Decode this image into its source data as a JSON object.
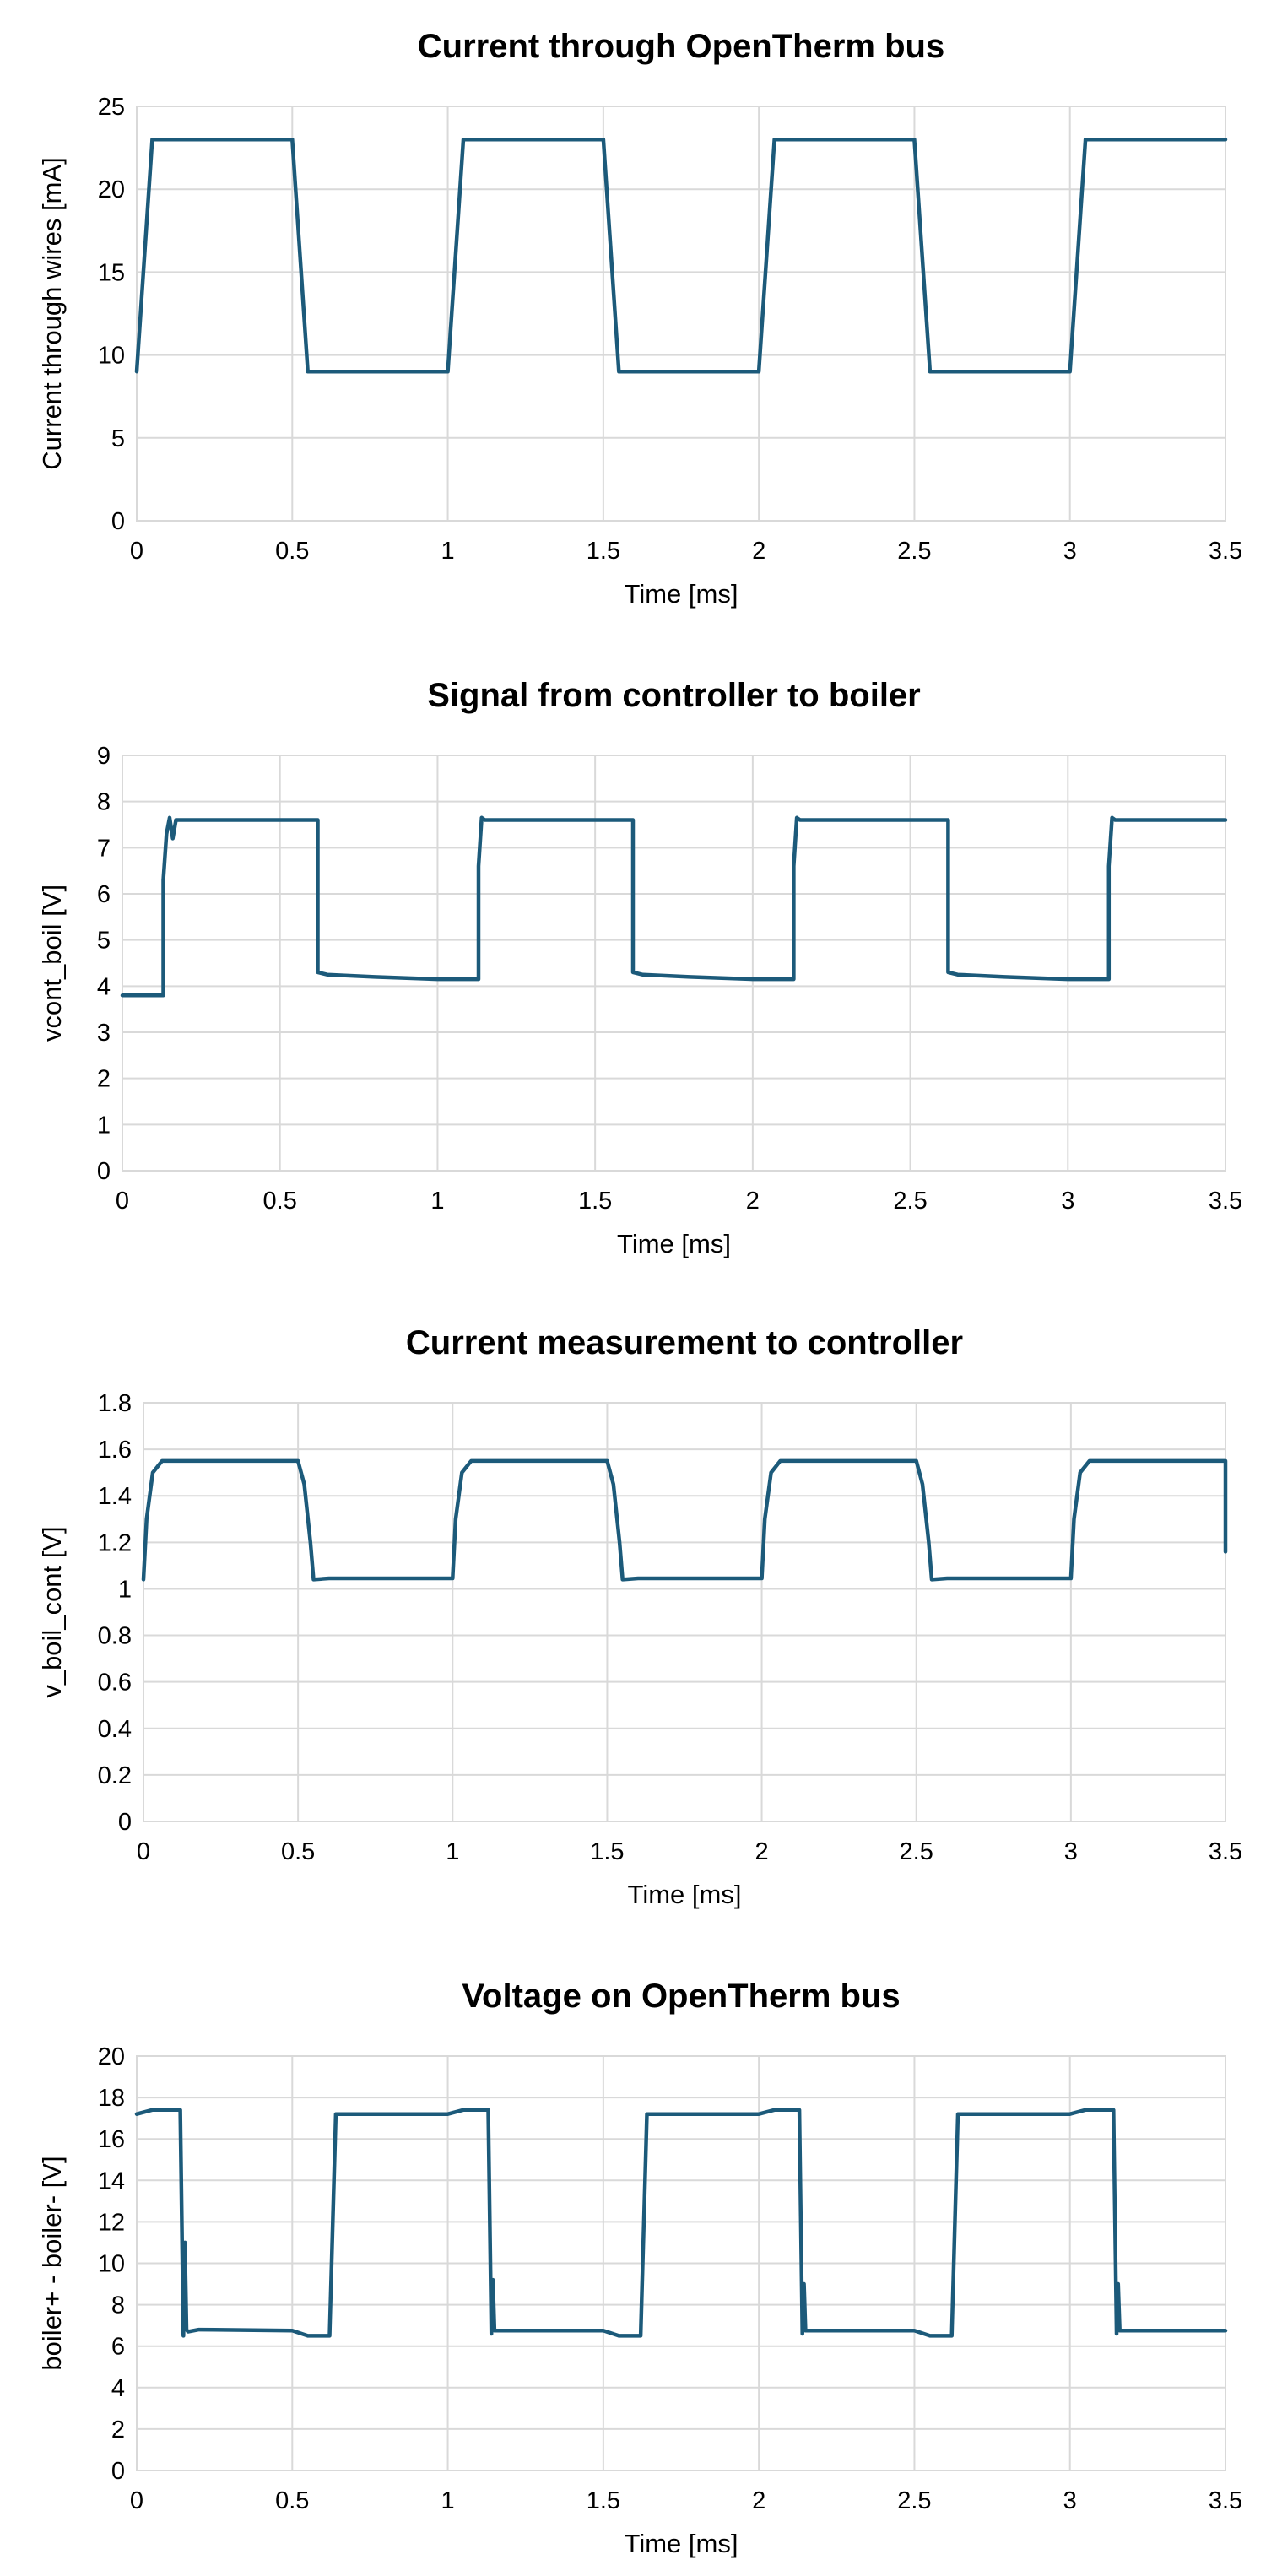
{
  "chart_data": [
    {
      "type": "line",
      "title": "Current through OpenTherm bus",
      "xlabel": "Time [ms]",
      "ylabel": "Current through wires [mA]",
      "xlim": [
        0,
        3.5
      ],
      "ylim": [
        0,
        25
      ],
      "xticks": [
        "0",
        "0.5",
        "1",
        "1.5",
        "2",
        "2.5",
        "3",
        "3.5"
      ],
      "yticks": [
        "0",
        "5",
        "10",
        "15",
        "20",
        "25"
      ],
      "grid": true,
      "color": "#1c5a7a",
      "x": [
        0,
        0.05,
        0.5,
        0.55,
        1.0,
        1.05,
        1.5,
        1.55,
        2.0,
        2.05,
        2.5,
        2.55,
        3.0,
        3.05,
        3.5
      ],
      "y": [
        9,
        23,
        23,
        9,
        9,
        23,
        23,
        9,
        9,
        23,
        23,
        9,
        9,
        23,
        23
      ]
    },
    {
      "type": "line",
      "title": "Signal from controller to boiler",
      "xlabel": "Time [ms]",
      "ylabel": "vcont_boil [V]",
      "xlim": [
        0,
        3.5
      ],
      "ylim": [
        0,
        9
      ],
      "xticks": [
        "0",
        "0.5",
        "1",
        "1.5",
        "2",
        "2.5",
        "3",
        "3.5"
      ],
      "yticks": [
        "0",
        "1",
        "2",
        "3",
        "4",
        "5",
        "6",
        "7",
        "8",
        "9"
      ],
      "grid": true,
      "color": "#1c5a7a",
      "x": [
        0,
        0.13,
        0.13,
        0.14,
        0.15,
        0.16,
        0.17,
        0.62,
        0.62,
        0.65,
        0.8,
        1.0,
        1.13,
        1.13,
        1.14,
        1.15,
        1.62,
        1.62,
        1.65,
        1.8,
        2.0,
        2.13,
        2.13,
        2.14,
        2.15,
        2.62,
        2.62,
        2.65,
        2.8,
        3.0,
        3.13,
        3.13,
        3.14,
        3.15,
        3.5
      ],
      "y": [
        3.8,
        3.8,
        6.3,
        7.3,
        7.65,
        7.2,
        7.6,
        7.6,
        4.3,
        4.25,
        4.2,
        4.15,
        4.15,
        6.6,
        7.65,
        7.6,
        7.6,
        4.3,
        4.25,
        4.2,
        4.15,
        4.15,
        6.6,
        7.65,
        7.6,
        7.6,
        4.3,
        4.25,
        4.2,
        4.15,
        4.15,
        6.6,
        7.65,
        7.6,
        7.6
      ]
    },
    {
      "type": "line",
      "title": "Current measurement to controller",
      "xlabel": "Time [ms]",
      "ylabel": "v_boil_cont [V]",
      "xlim": [
        0,
        3.5
      ],
      "ylim": [
        0,
        1.8
      ],
      "xticks": [
        "0",
        "0.5",
        "1",
        "1.5",
        "2",
        "2.5",
        "3",
        "3.5"
      ],
      "yticks": [
        "0",
        "0.2",
        "0.4",
        "0.6",
        "0.8",
        "1",
        "1.2",
        "1.4",
        "1.6",
        "1.8"
      ],
      "grid": true,
      "color": "#1c5a7a",
      "x": [
        0,
        0.01,
        0.03,
        0.06,
        0.5,
        0.52,
        0.54,
        0.55,
        0.6,
        1.0,
        1.01,
        1.03,
        1.06,
        1.5,
        1.52,
        1.54,
        1.55,
        1.6,
        2.0,
        2.01,
        2.03,
        2.06,
        2.5,
        2.52,
        2.54,
        2.55,
        2.6,
        3.0,
        3.01,
        3.03,
        3.06,
        3.5,
        3.5
      ],
      "y": [
        1.04,
        1.3,
        1.5,
        1.55,
        1.55,
        1.45,
        1.2,
        1.04,
        1.045,
        1.045,
        1.3,
        1.5,
        1.55,
        1.55,
        1.45,
        1.2,
        1.04,
        1.045,
        1.045,
        1.3,
        1.5,
        1.55,
        1.55,
        1.45,
        1.2,
        1.04,
        1.045,
        1.045,
        1.3,
        1.5,
        1.55,
        1.55,
        1.16
      ]
    },
    {
      "type": "line",
      "title": "Voltage on OpenTherm bus",
      "xlabel": "Time [ms]",
      "ylabel": "boiler+ - boiler- [V]",
      "xlim": [
        0,
        3.5
      ],
      "ylim": [
        0,
        20
      ],
      "xticks": [
        "0",
        "0.5",
        "1",
        "1.5",
        "2",
        "2.5",
        "3",
        "3.5"
      ],
      "yticks": [
        "0",
        "2",
        "4",
        "6",
        "8",
        "10",
        "12",
        "14",
        "16",
        "18",
        "20"
      ],
      "grid": true,
      "color": "#1c5a7a",
      "x": [
        0,
        0.05,
        0.14,
        0.15,
        0.155,
        0.16,
        0.165,
        0.2,
        0.5,
        0.55,
        0.62,
        0.64,
        1.0,
        1.05,
        1.13,
        1.14,
        1.145,
        1.15,
        1.2,
        1.5,
        1.55,
        1.62,
        1.64,
        2.0,
        2.05,
        2.13,
        2.14,
        2.145,
        2.15,
        2.2,
        2.5,
        2.55,
        2.62,
        2.64,
        3.0,
        3.05,
        3.14,
        3.15,
        3.155,
        3.16,
        3.2,
        3.5
      ],
      "y": [
        17.2,
        17.4,
        17.4,
        6.5,
        11.0,
        6.8,
        6.7,
        6.8,
        6.75,
        6.5,
        6.5,
        17.2,
        17.2,
        17.4,
        17.4,
        6.6,
        9.2,
        6.75,
        6.75,
        6.75,
        6.5,
        6.5,
        17.2,
        17.2,
        17.4,
        17.4,
        6.6,
        9.0,
        6.75,
        6.75,
        6.75,
        6.5,
        6.5,
        17.2,
        17.2,
        17.4,
        17.4,
        6.6,
        9.0,
        6.75,
        6.75,
        6.75
      ]
    }
  ]
}
